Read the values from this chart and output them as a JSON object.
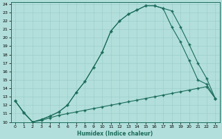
{
  "xlabel": "Humidex (Indice chaleur)",
  "background_color": "#b2dfdb",
  "grid_color": "#9ececa",
  "line_color": "#1a6b5a",
  "xlim": [
    -0.5,
    23.5
  ],
  "ylim": [
    10,
    24.2
  ],
  "xticks": [
    0,
    1,
    2,
    3,
    4,
    5,
    6,
    7,
    8,
    9,
    10,
    11,
    12,
    13,
    14,
    15,
    16,
    17,
    18,
    19,
    20,
    21,
    22,
    23
  ],
  "yticks": [
    10,
    11,
    12,
    13,
    14,
    15,
    16,
    17,
    18,
    19,
    20,
    21,
    22,
    23,
    24
  ],
  "line1_x": [
    0,
    1,
    2,
    3,
    4,
    5,
    6,
    7,
    8,
    9,
    10,
    11,
    12,
    13,
    14,
    15,
    16,
    17,
    18,
    19,
    20,
    21,
    22,
    23
  ],
  "line1_y": [
    12.5,
    11.1,
    10.0,
    10.2,
    10.5,
    10.8,
    11.0,
    11.2,
    11.4,
    11.6,
    11.8,
    12.0,
    12.2,
    12.4,
    12.6,
    12.8,
    13.0,
    13.2,
    13.4,
    13.6,
    13.8,
    14.0,
    14.2,
    12.8
  ],
  "line2_x": [
    0,
    1,
    2,
    3,
    4,
    5,
    6,
    7,
    8,
    9,
    10,
    11,
    12,
    13,
    14,
    15,
    16,
    17,
    18,
    19,
    20,
    21,
    22,
    23
  ],
  "line2_y": [
    12.5,
    11.1,
    10.0,
    10.3,
    10.7,
    11.2,
    12.0,
    13.5,
    14.8,
    16.5,
    18.3,
    20.8,
    22.0,
    22.8,
    23.3,
    23.8,
    23.8,
    23.5,
    23.2,
    21.3,
    19.2,
    17.0,
    15.2,
    12.8
  ],
  "line3_x": [
    0,
    1,
    2,
    3,
    4,
    5,
    6,
    7,
    8,
    9,
    10,
    11,
    12,
    13,
    14,
    15,
    16,
    17,
    18,
    19,
    20,
    21,
    22,
    23
  ],
  "line3_y": [
    12.5,
    11.1,
    10.0,
    10.3,
    10.7,
    11.2,
    12.0,
    13.5,
    14.8,
    16.5,
    18.3,
    20.8,
    22.0,
    22.8,
    23.3,
    23.8,
    23.8,
    23.5,
    21.3,
    19.5,
    17.3,
    15.0,
    14.5,
    12.8
  ]
}
